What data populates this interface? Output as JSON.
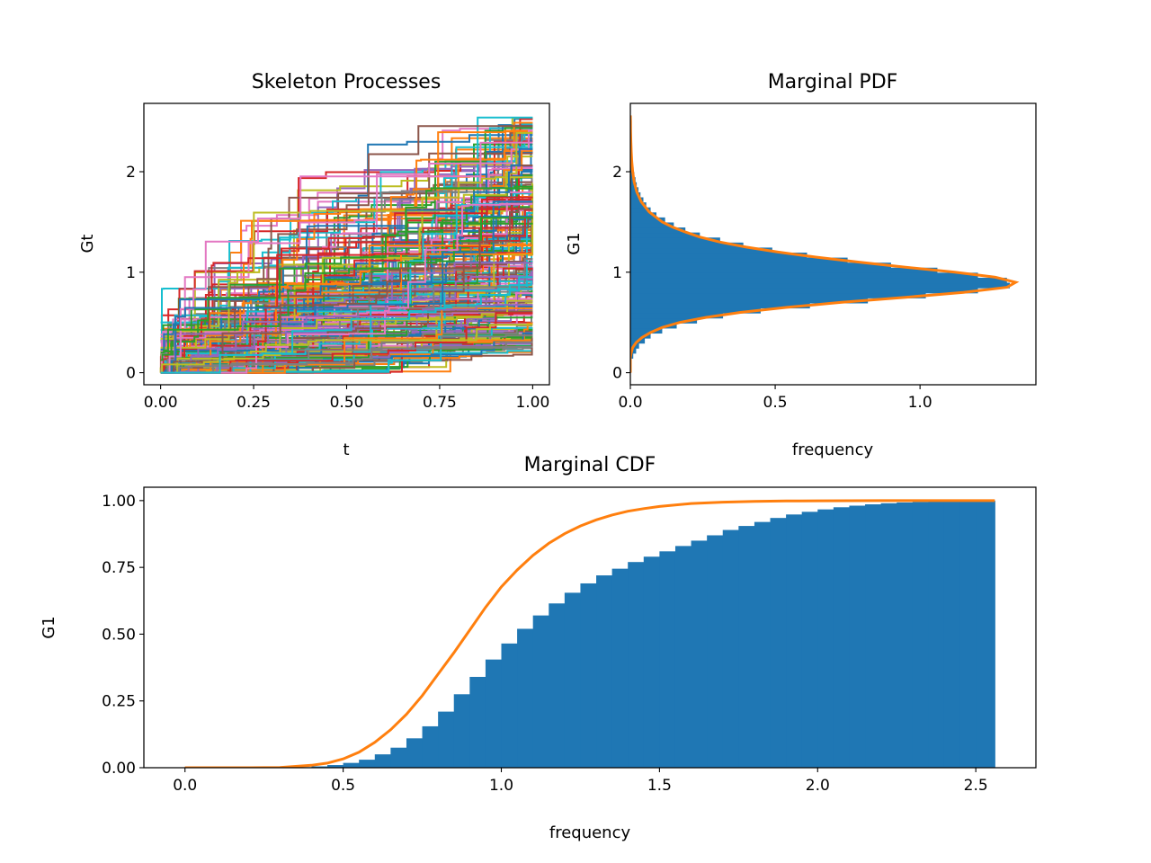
{
  "chart_data": [
    {
      "type": "line",
      "title": "Skeleton Processes",
      "xlabel": "t",
      "ylabel": "Gt",
      "xlim": [
        -0.045,
        1.045
      ],
      "ylim": [
        -0.12,
        2.68
      ],
      "xticks": [
        "0.00",
        "0.25",
        "0.50",
        "0.75",
        "1.00"
      ],
      "yticks": [
        "0",
        "1",
        "2"
      ],
      "grid": false,
      "series_description": "many step-function sample paths starting near 0 at t=0 and ending between about 0.2 and 2.55 at t=1"
    },
    {
      "type": "bar",
      "orientation": "horizontal",
      "title": "Marginal PDF",
      "xlabel": "frequency",
      "ylabel": "G1",
      "xlim": [
        0,
        1.4
      ],
      "ylim": [
        -0.12,
        2.68
      ],
      "xticks": [
        "0.0",
        "0.5",
        "1.0"
      ],
      "yticks": [
        "0",
        "1",
        "2"
      ],
      "grid": false,
      "histogram": {
        "bin_centers": [
          0.02,
          0.07,
          0.12,
          0.17,
          0.22,
          0.27,
          0.32,
          0.37,
          0.42,
          0.47,
          0.52,
          0.57,
          0.62,
          0.67,
          0.72,
          0.77,
          0.82,
          0.87,
          0.92,
          0.97,
          1.02,
          1.07,
          1.12,
          1.17,
          1.22,
          1.27,
          1.32,
          1.37,
          1.42,
          1.47,
          1.52,
          1.57,
          1.62,
          1.67,
          1.72,
          1.77,
          1.82,
          1.87,
          1.92,
          1.97,
          2.02,
          2.07,
          2.12,
          2.17,
          2.22,
          2.27,
          2.32,
          2.37,
          2.42,
          2.47,
          2.52
        ],
        "densities": [
          0.0,
          0.0,
          0.0,
          0.01,
          0.02,
          0.03,
          0.05,
          0.07,
          0.11,
          0.16,
          0.23,
          0.32,
          0.45,
          0.62,
          0.82,
          1.02,
          1.2,
          1.31,
          1.3,
          1.2,
          1.06,
          0.9,
          0.75,
          0.61,
          0.49,
          0.39,
          0.31,
          0.24,
          0.19,
          0.15,
          0.12,
          0.09,
          0.07,
          0.055,
          0.045,
          0.035,
          0.028,
          0.022,
          0.018,
          0.014,
          0.011,
          0.009,
          0.007,
          0.005,
          0.004,
          0.003,
          0.002,
          0.002,
          0.001,
          0.001,
          0.0
        ]
      },
      "curve": {
        "g": [
          0.0,
          0.05,
          0.1,
          0.15,
          0.2,
          0.25,
          0.3,
          0.35,
          0.4,
          0.45,
          0.5,
          0.55,
          0.6,
          0.65,
          0.7,
          0.75,
          0.8,
          0.85,
          0.9,
          0.95,
          1.0,
          1.05,
          1.1,
          1.15,
          1.2,
          1.25,
          1.3,
          1.35,
          1.4,
          1.45,
          1.5,
          1.6,
          1.7,
          1.8,
          1.9,
          2.0,
          2.1,
          2.2,
          2.3,
          2.4,
          2.5,
          2.56
        ],
        "density": [
          0.0,
          0.0,
          0.0,
          0.0,
          0.003,
          0.008,
          0.02,
          0.04,
          0.07,
          0.11,
          0.17,
          0.26,
          0.38,
          0.54,
          0.73,
          0.95,
          1.15,
          1.3,
          1.33,
          1.26,
          1.12,
          0.95,
          0.79,
          0.64,
          0.51,
          0.4,
          0.31,
          0.24,
          0.19,
          0.145,
          0.11,
          0.065,
          0.038,
          0.022,
          0.013,
          0.008,
          0.005,
          0.003,
          0.002,
          0.001,
          0.0005,
          0.0
        ]
      }
    },
    {
      "type": "bar",
      "title": "Marginal CDF",
      "xlabel": "frequency",
      "ylabel": "G1",
      "xlim": [
        -0.13,
        2.69
      ],
      "ylim": [
        0,
        1.05
      ],
      "xticks": [
        "0.0",
        "0.5",
        "1.0",
        "1.5",
        "2.0",
        "2.5"
      ],
      "yticks": [
        "0.00",
        "0.25",
        "0.50",
        "0.75",
        "1.00"
      ],
      "grid": false,
      "histogram": {
        "bin_edges_start": 0.0,
        "bin_width": 0.05,
        "cumulative": [
          0.0,
          0.0,
          0.0,
          0.0,
          0.0,
          0.0,
          0.001,
          0.002,
          0.005,
          0.01,
          0.018,
          0.03,
          0.05,
          0.075,
          0.11,
          0.155,
          0.21,
          0.275,
          0.34,
          0.405,
          0.465,
          0.52,
          0.57,
          0.615,
          0.655,
          0.69,
          0.72,
          0.745,
          0.77,
          0.79,
          0.81,
          0.83,
          0.85,
          0.87,
          0.89,
          0.905,
          0.92,
          0.935,
          0.948,
          0.958,
          0.967,
          0.975,
          0.981,
          0.986,
          0.99,
          0.993,
          0.995,
          0.997,
          0.998,
          0.999,
          1.0,
          1.0
        ]
      },
      "curve": {
        "g": [
          0.0,
          0.1,
          0.2,
          0.3,
          0.4,
          0.45,
          0.5,
          0.55,
          0.6,
          0.65,
          0.7,
          0.75,
          0.8,
          0.85,
          0.9,
          0.95,
          1.0,
          1.05,
          1.1,
          1.15,
          1.2,
          1.25,
          1.3,
          1.35,
          1.4,
          1.45,
          1.5,
          1.6,
          1.7,
          1.8,
          1.9,
          2.0,
          2.2,
          2.4,
          2.56
        ],
        "cdf": [
          0.0,
          0.0,
          0.0,
          0.001,
          0.009,
          0.017,
          0.033,
          0.058,
          0.095,
          0.142,
          0.2,
          0.27,
          0.35,
          0.43,
          0.515,
          0.6,
          0.677,
          0.74,
          0.795,
          0.84,
          0.876,
          0.905,
          0.928,
          0.946,
          0.96,
          0.97,
          0.978,
          0.989,
          0.994,
          0.997,
          0.9985,
          0.9993,
          0.9998,
          1.0,
          1.0
        ]
      }
    }
  ]
}
